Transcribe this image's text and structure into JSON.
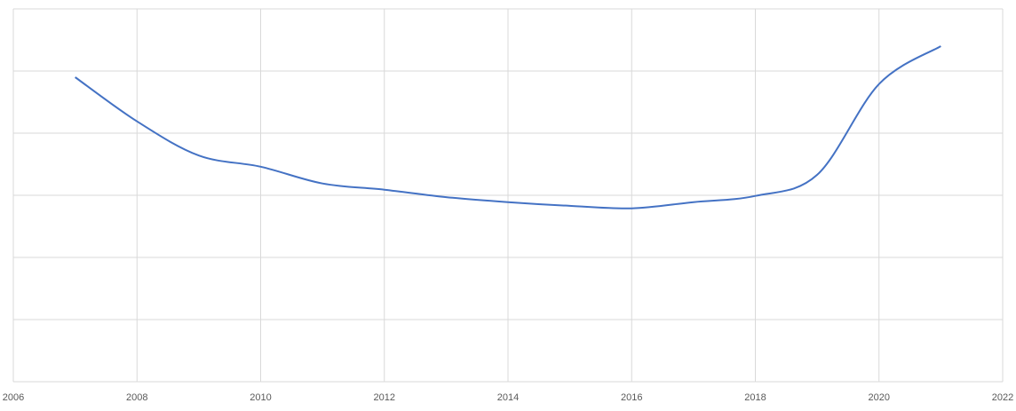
{
  "chart_data": {
    "type": "line",
    "x": [
      2007,
      2008,
      2009,
      2010,
      2011,
      2012,
      2013,
      2014,
      2015,
      2016,
      2017,
      2018,
      2019,
      2020,
      2021
    ],
    "series": [
      {
        "color": "#4472c4",
        "values": [
          4.9,
          4.19,
          3.64,
          3.46,
          3.19,
          3.09,
          2.97,
          2.89,
          2.83,
          2.79,
          2.89,
          2.99,
          3.33,
          4.79,
          5.4
        ]
      }
    ],
    "xlim": [
      2006,
      2022
    ],
    "xticks": [
      2006,
      2008,
      2010,
      2012,
      2014,
      2016,
      2018,
      2020,
      2022
    ],
    "ylim": [
      0,
      6
    ],
    "yticks": [
      0,
      1,
      2,
      3,
      4,
      5,
      6
    ],
    "ytick_labels": false,
    "grid": true,
    "smooth": true
  }
}
